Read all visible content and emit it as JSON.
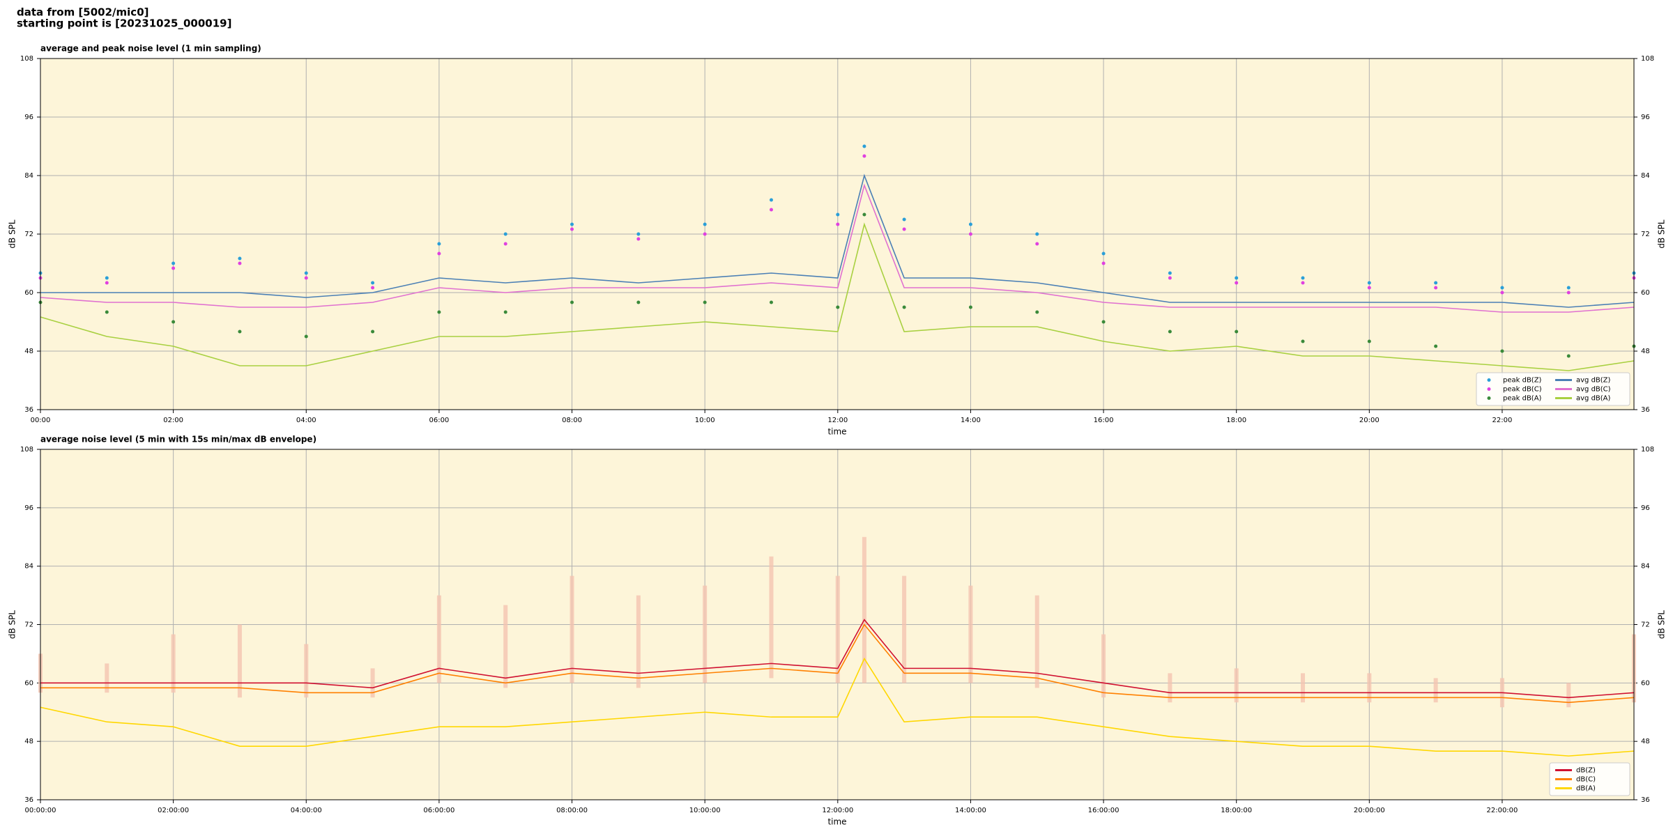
{
  "header": {
    "line1": "data from [5002/mic0]",
    "line2": "starting point is [20231025_000019]"
  },
  "chart_data": [
    {
      "type": "line",
      "title": "average and peak noise level (1 min sampling)",
      "xlabel": "time",
      "ylabel": "dB SPL",
      "x": [
        "00:00",
        "01:00",
        "02:00",
        "03:00",
        "04:00",
        "05:00",
        "06:00",
        "07:00",
        "08:00",
        "09:00",
        "10:00",
        "11:00",
        "12:00",
        "12:24",
        "13:00",
        "14:00",
        "15:00",
        "16:00",
        "17:00",
        "18:00",
        "19:00",
        "20:00",
        "21:00",
        "22:00",
        "23:00",
        "23:59"
      ],
      "xlim": [
        "00:00",
        "23:59"
      ],
      "xticks": [
        "00:00",
        "02:00",
        "04:00",
        "06:00",
        "08:00",
        "10:00",
        "12:00",
        "14:00",
        "16:00",
        "18:00",
        "20:00",
        "22:00"
      ],
      "ylim": [
        36,
        108
      ],
      "yticks": [
        36,
        48,
        60,
        72,
        84,
        96,
        108
      ],
      "grid": true,
      "legend": "lower right",
      "legend_columns": 2,
      "background": "#fdf5d9",
      "series": [
        {
          "name": "peak dB(Z)",
          "mode": "markers",
          "color": "#2a9fd8",
          "values": [
            64,
            63,
            66,
            67,
            64,
            62,
            70,
            72,
            74,
            72,
            74,
            79,
            76,
            90,
            75,
            74,
            72,
            68,
            64,
            63,
            63,
            62,
            62,
            61,
            61,
            64
          ]
        },
        {
          "name": "peak dB(C)",
          "mode": "markers",
          "color": "#e040e0",
          "values": [
            63,
            62,
            65,
            66,
            63,
            61,
            68,
            70,
            73,
            71,
            72,
            77,
            74,
            88,
            73,
            72,
            70,
            66,
            63,
            62,
            62,
            61,
            61,
            60,
            60,
            63
          ]
        },
        {
          "name": "peak dB(A)",
          "mode": "markers",
          "color": "#3a8a3a",
          "values": [
            58,
            56,
            54,
            52,
            51,
            52,
            56,
            56,
            58,
            58,
            58,
            58,
            57,
            76,
            57,
            57,
            56,
            54,
            52,
            52,
            50,
            50,
            49,
            48,
            47,
            49
          ]
        },
        {
          "name": "avg dB(Z)",
          "mode": "lines",
          "color": "#4a7fb5",
          "values": [
            60,
            60,
            60,
            60,
            59,
            60,
            63,
            62,
            63,
            62,
            63,
            64,
            63,
            84,
            63,
            63,
            62,
            60,
            58,
            58,
            58,
            58,
            58,
            58,
            57,
            58
          ]
        },
        {
          "name": "avg dB(C)",
          "mode": "lines",
          "color": "#e070d0",
          "values": [
            59,
            58,
            58,
            57,
            57,
            58,
            61,
            60,
            61,
            61,
            61,
            62,
            61,
            82,
            61,
            61,
            60,
            58,
            57,
            57,
            57,
            57,
            57,
            56,
            56,
            57
          ]
        },
        {
          "name": "avg dB(A)",
          "mode": "lines",
          "color": "#a8d040",
          "values": [
            55,
            51,
            49,
            45,
            45,
            48,
            51,
            51,
            52,
            53,
            54,
            53,
            52,
            74,
            52,
            53,
            53,
            50,
            48,
            49,
            47,
            47,
            46,
            45,
            44,
            46
          ]
        }
      ]
    },
    {
      "type": "line",
      "title": "average noise level (5 min with 15s min/max dB envelope)",
      "xlabel": "time",
      "ylabel": "dB SPL",
      "x": [
        "00:00:00",
        "01:00:00",
        "02:00:00",
        "03:00:00",
        "04:00:00",
        "05:00:00",
        "06:00:00",
        "07:00:00",
        "08:00:00",
        "09:00:00",
        "10:00:00",
        "11:00:00",
        "12:00:00",
        "12:24:00",
        "13:00:00",
        "14:00:00",
        "15:00:00",
        "16:00:00",
        "17:00:00",
        "18:00:00",
        "19:00:00",
        "20:00:00",
        "21:00:00",
        "22:00:00",
        "23:00:00",
        "23:59:00"
      ],
      "xlim": [
        "00:00:00",
        "23:59:00"
      ],
      "xticks": [
        "00:00:00",
        "02:00:00",
        "04:00:00",
        "06:00:00",
        "08:00:00",
        "10:00:00",
        "12:00:00",
        "14:00:00",
        "16:00:00",
        "18:00:00",
        "20:00:00",
        "22:00:00"
      ],
      "ylim": [
        36,
        108
      ],
      "yticks": [
        36,
        48,
        60,
        72,
        84,
        96,
        108
      ],
      "grid": true,
      "legend": "lower right",
      "legend_columns": 1,
      "background": "#fdf5d9",
      "envelope": {
        "color": "#f4c4b0",
        "low": [
          58,
          58,
          58,
          57,
          57,
          57,
          60,
          59,
          60,
          59,
          60,
          61,
          60,
          60,
          60,
          60,
          59,
          57,
          56,
          56,
          56,
          56,
          56,
          55,
          55,
          56
        ],
        "high": [
          66,
          64,
          70,
          72,
          68,
          63,
          78,
          76,
          82,
          78,
          80,
          86,
          82,
          90,
          82,
          80,
          78,
          70,
          62,
          63,
          62,
          62,
          61,
          61,
          60,
          70
        ]
      },
      "series": [
        {
          "name": "dB(Z)",
          "mode": "lines",
          "color": "#d01030",
          "values": [
            60,
            60,
            60,
            60,
            60,
            59,
            63,
            61,
            63,
            62,
            63,
            64,
            63,
            73,
            63,
            63,
            62,
            60,
            58,
            58,
            58,
            58,
            58,
            58,
            57,
            58
          ]
        },
        {
          "name": "dB(C)",
          "mode": "lines",
          "color": "#ff8000",
          "values": [
            59,
            59,
            59,
            59,
            58,
            58,
            62,
            60,
            62,
            61,
            62,
            63,
            62,
            72,
            62,
            62,
            61,
            58,
            57,
            57,
            57,
            57,
            57,
            57,
            56,
            57
          ]
        },
        {
          "name": "dB(A)",
          "mode": "lines",
          "color": "#ffd700",
          "values": [
            55,
            52,
            51,
            47,
            47,
            49,
            51,
            51,
            52,
            53,
            54,
            53,
            53,
            65,
            52,
            53,
            53,
            51,
            49,
            48,
            47,
            47,
            46,
            46,
            45,
            46
          ]
        }
      ]
    }
  ]
}
